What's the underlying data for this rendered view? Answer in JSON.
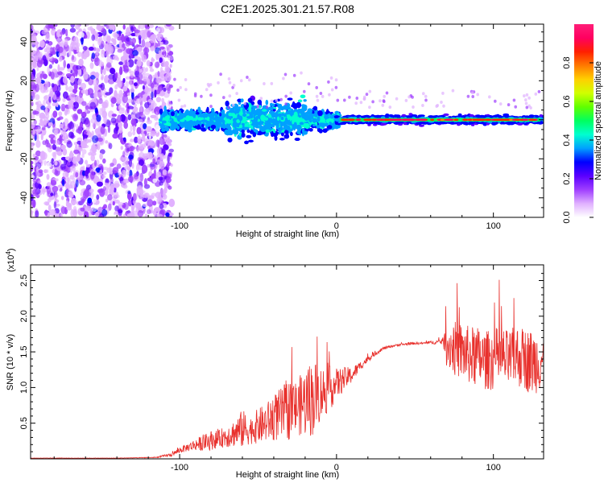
{
  "title": "C2E1.2025.301.21.57.R08",
  "chart_data": [
    {
      "type": "heatmap",
      "id": "spectrogram",
      "xlabel": "Height of straight line (km)",
      "ylabel": "Frequency (Hz)",
      "xlim": [
        -195,
        132
      ],
      "ylim": [
        -50,
        49
      ],
      "xticks": [
        -100,
        0,
        100
      ],
      "xtick_labels": [
        "-100",
        "0",
        "100"
      ],
      "yticks": [
        -40,
        -20,
        0,
        20,
        40
      ],
      "ytick_labels": [
        "-40",
        "-20",
        "0",
        "20",
        "40"
      ],
      "noise_region_x": [
        -195,
        -110
      ],
      "signal_band": {
        "center_hz": 0,
        "halfwidth_hz": 3,
        "from_km": 0,
        "to_km": 132
      },
      "note": "Normalized spectral amplitude heatmap; scattered noise below -110 km, broadband signal -110 to 0 km, narrow strong line at 0 Hz above 0 km"
    },
    {
      "type": "colorbar",
      "id": "colorbar",
      "label": "Normalized spectral amplitude",
      "range": [
        0,
        1
      ],
      "ticks": [
        0.0,
        0.2,
        0.4,
        0.6,
        0.8
      ],
      "tick_labels": [
        "0.0",
        "0.2",
        "0.4",
        "0.6",
        "0.8"
      ],
      "colors": [
        "#ffffff",
        "#e0b0ff",
        "#9f3fff",
        "#5a00ff",
        "#0000ff",
        "#00a0ff",
        "#00ffd0",
        "#00ff60",
        "#60ff00",
        "#d0ff00",
        "#ffd000",
        "#ff7a00",
        "#ff2000",
        "#ff0060",
        "#ff1e78"
      ]
    },
    {
      "type": "line",
      "id": "snr",
      "xlabel": "Height of straight line (km)",
      "ylabel": "SNR (10 * v/v)",
      "y_multiplier": "(x10",
      "y_multiplier_exp": "4",
      "xlim": [
        -195,
        132
      ],
      "ylim": [
        0,
        2.72
      ],
      "xticks": [
        -100,
        0,
        100
      ],
      "xtick_labels": [
        "-100",
        "0",
        "100"
      ],
      "yticks": [
        0.5,
        1.0,
        1.5,
        2.0,
        2.5
      ],
      "ytick_labels": [
        "0.5",
        "1.0",
        "1.5",
        "2.0",
        "2.5"
      ],
      "color": "#e8302c",
      "series": [
        {
          "name": "SNR",
          "x": [
            -195,
            -170,
            -140,
            -115,
            -105,
            -100,
            -95,
            -90,
            -85,
            -80,
            -75,
            -70,
            -65,
            -60,
            -55,
            -50,
            -45,
            -40,
            -35,
            -30,
            -25,
            -20,
            -15,
            -10,
            -5,
            0,
            5,
            10,
            15,
            20,
            25,
            30,
            35,
            40,
            45,
            50,
            55,
            60,
            65,
            68,
            70,
            75,
            80,
            85,
            90,
            95,
            100,
            105,
            110,
            115,
            120,
            125,
            130
          ],
          "y": [
            0.01,
            0.01,
            0.01,
            0.02,
            0.06,
            0.12,
            0.16,
            0.2,
            0.22,
            0.26,
            0.28,
            0.32,
            0.36,
            0.42,
            0.4,
            0.46,
            0.5,
            0.58,
            0.62,
            0.7,
            0.72,
            0.8,
            0.86,
            0.92,
            0.98,
            1.05,
            1.12,
            1.18,
            1.3,
            1.4,
            1.48,
            1.55,
            1.58,
            1.6,
            1.61,
            1.62,
            1.62,
            1.63,
            1.64,
            1.65,
            1.6,
            1.55,
            1.5,
            1.45,
            1.42,
            1.38,
            1.4,
            1.42,
            1.38,
            1.45,
            1.4,
            1.35,
            1.4
          ],
          "noise_amplitude": [
            0.005,
            0.005,
            0.005,
            0.01,
            0.05,
            0.08,
            0.1,
            0.15,
            0.2,
            0.25,
            0.22,
            0.3,
            0.35,
            0.5,
            0.35,
            0.45,
            0.5,
            0.6,
            0.7,
            0.8,
            0.7,
            0.9,
            1.0,
            0.7,
            0.6,
            0.4,
            0.3,
            0.2,
            0.12,
            0.08,
            0.05,
            0.04,
            0.03,
            0.03,
            0.03,
            0.03,
            0.03,
            0.04,
            0.06,
            0.1,
            0.55,
            0.7,
            0.75,
            0.75,
            0.8,
            0.75,
            0.8,
            0.8,
            0.75,
            0.8,
            0.8,
            0.85,
            0.8
          ]
        }
      ]
    }
  ]
}
